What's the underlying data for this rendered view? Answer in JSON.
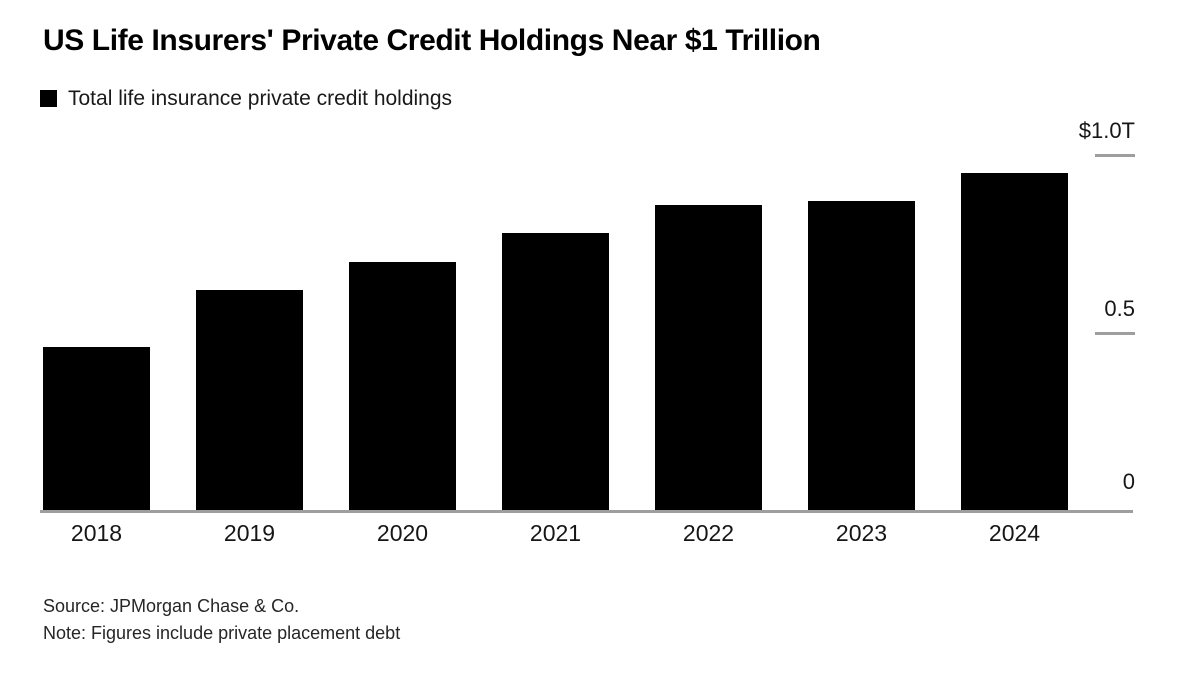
{
  "title": "US Life Insurers' Private Credit Holdings Near $1 Trillion",
  "legend": {
    "label": "Total life insurance private credit holdings",
    "swatch_color": "#000000"
  },
  "chart_data": {
    "type": "bar",
    "title": "US Life Insurers' Private Credit Holdings Near $1 Trillion",
    "series_name": "Total life insurance private credit holdings",
    "categories": [
      "2018",
      "2019",
      "2020",
      "2021",
      "2022",
      "2023",
      "2024"
    ],
    "values": [
      0.46,
      0.62,
      0.7,
      0.78,
      0.86,
      0.87,
      0.95
    ],
    "unit": "trillions of US dollars",
    "xlabel": "",
    "ylabel": "",
    "ylim": [
      0,
      1.0
    ],
    "y_ticks": [
      {
        "value": 1.0,
        "label": "$1.0T"
      },
      {
        "value": 0.5,
        "label": "0.5"
      },
      {
        "value": 0,
        "label": "0"
      }
    ],
    "bar_color": "#000000",
    "axis_color": "#9e9e9e",
    "grid": false,
    "legend_position": "top-left"
  },
  "footer": {
    "source": "Source: JPMorgan Chase & Co.",
    "note": "Note: Figures include private placement debt"
  }
}
